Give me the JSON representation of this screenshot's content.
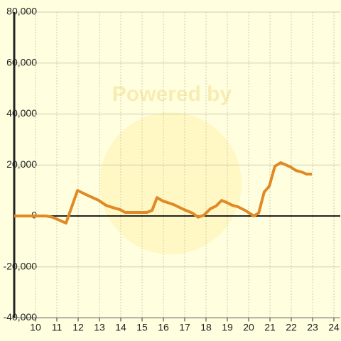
{
  "chart_data": {
    "type": "line",
    "watermark": "Powered by",
    "x": [
      9,
      10.5,
      10.8,
      11.43,
      11.97,
      12.47,
      12.97,
      13.3,
      13.63,
      13.97,
      14.2,
      15.23,
      15.47,
      15.7,
      15.97,
      16.47,
      16.97,
      17.37,
      17.63,
      17.9,
      18.2,
      18.47,
      18.73,
      18.97,
      19.23,
      19.5,
      19.83,
      20.13,
      20.23,
      20.47,
      20.73,
      20.97,
      21.23,
      21.5,
      21.73,
      21.97,
      22.23,
      22.47,
      22.73,
      22.97
    ],
    "series": [
      {
        "color": "#e08a26",
        "values": [
          0,
          0,
          -500,
          -2800,
          10000,
          8000,
          6100,
          4200,
          3300,
          2500,
          1400,
          1400,
          2200,
          7200,
          5900,
          4500,
          2500,
          1100,
          -500,
          300,
          2800,
          3900,
          6100,
          5300,
          4200,
          3600,
          2200,
          600,
          0,
          1100,
          9400,
          11700,
          19500,
          20900,
          20100,
          19200,
          17800,
          17300,
          16400,
          16400
        ]
      }
    ],
    "xlim": [
      9,
      24.3
    ],
    "xticks": [
      10,
      11,
      12,
      13,
      14,
      15,
      16,
      17,
      18,
      19,
      20,
      21,
      22,
      23,
      24
    ],
    "ylim": [
      -40000,
      80000
    ],
    "yticks": [
      {
        "value": -40000,
        "label": "-40,000"
      },
      {
        "value": -20000,
        "label": "-20,000"
      },
      0,
      {
        "value": 20000,
        "label": "20,000"
      },
      {
        "value": 40000,
        "label": "40,000"
      },
      {
        "value": 60000,
        "label": "60,000"
      },
      {
        "value": 80000,
        "label": "80,000"
      }
    ],
    "grid": true
  }
}
